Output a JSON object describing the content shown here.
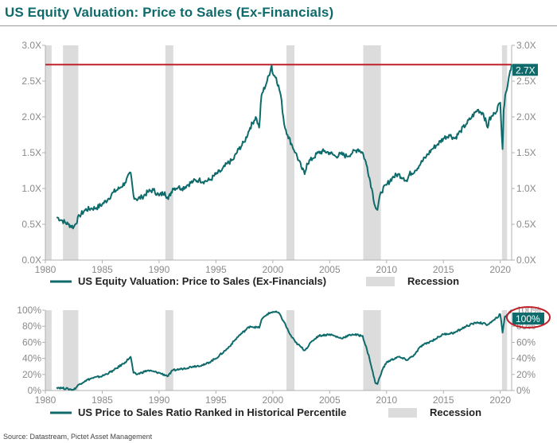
{
  "title": "US Equity Valuation: Price to Sales (Ex-Financials)",
  "source": "Source: Datastream, Pictet Asset Management",
  "colors": {
    "line": "#0f6b6b",
    "recession": "#dcdcdc",
    "reference": "#c0202a",
    "ticks": "#8a8a8a"
  },
  "recessions": [
    [
      1980.0,
      1980.55
    ],
    [
      1981.55,
      1982.9
    ],
    [
      1990.55,
      1991.25
    ],
    [
      2001.2,
      2001.9
    ],
    [
      2007.95,
      2009.5
    ],
    [
      2020.15,
      2020.6
    ]
  ],
  "chart_data": [
    {
      "type": "line",
      "title": "US Equity Valuation: Price to Sales (Ex-Financials)",
      "xlim": [
        1980,
        2021
      ],
      "ylim": [
        0,
        3.0
      ],
      "x_ticks": [
        "1980",
        "1985",
        "1990",
        "1995",
        "2000",
        "2005",
        "2010",
        "2015",
        "2020"
      ],
      "y_ticks_left": [
        "0.0X",
        "0.5X",
        "1.0X",
        "1.5X",
        "2.0X",
        "2.5X",
        "3.0X"
      ],
      "y_ticks_right": [
        "0.0X",
        "0.5X",
        "1.0X",
        "1.5X",
        "2.0X",
        "2.5X",
        "3.0X"
      ],
      "reference_line": {
        "value": 2.73,
        "label": "2.7X"
      },
      "legend": {
        "series_label": "US Equity Valuation: Price to Sales (Ex-Financials)",
        "recession_label": "Recession"
      },
      "series": [
        {
          "name": "US Equity Valuation: Price to Sales (Ex-Financials)",
          "x": [
            1981.0,
            1981.5,
            1982.0,
            1982.5,
            1983.0,
            1983.5,
            1984.0,
            1984.5,
            1985.0,
            1985.5,
            1986.0,
            1986.5,
            1987.0,
            1987.5,
            1987.75,
            1988.0,
            1988.5,
            1989.0,
            1989.5,
            1990.0,
            1990.5,
            1990.8,
            1991.2,
            1991.7,
            1992.0,
            1992.5,
            1993.0,
            1993.5,
            1994.0,
            1994.5,
            1995.0,
            1995.5,
            1996.0,
            1996.5,
            1997.0,
            1997.5,
            1998.0,
            1998.5,
            1998.8,
            1999.0,
            1999.5,
            1999.9,
            2000.0,
            2000.3,
            2000.7,
            2001.0,
            2001.3,
            2001.7,
            2002.0,
            2002.5,
            2002.8,
            2003.0,
            2003.5,
            2004.0,
            2004.5,
            2005.0,
            2005.5,
            2006.0,
            2006.5,
            2007.0,
            2007.5,
            2007.9,
            2008.3,
            2008.7,
            2009.0,
            2009.2,
            2009.5,
            2010.0,
            2010.5,
            2011.0,
            2011.5,
            2011.8,
            2012.0,
            2012.5,
            2013.0,
            2013.5,
            2014.0,
            2014.5,
            2015.0,
            2015.5,
            2016.0,
            2016.5,
            2017.0,
            2017.5,
            2018.0,
            2018.5,
            2018.9,
            2019.0,
            2019.5,
            2020.0,
            2020.2,
            2020.3,
            2020.5,
            2020.75,
            2021.0
          ],
          "values": [
            0.6,
            0.55,
            0.5,
            0.46,
            0.62,
            0.7,
            0.72,
            0.73,
            0.78,
            0.85,
            0.95,
            1.0,
            1.08,
            1.22,
            0.9,
            0.85,
            0.88,
            0.95,
            0.98,
            0.9,
            0.95,
            0.85,
            1.0,
            1.02,
            1.0,
            1.05,
            1.1,
            1.12,
            1.1,
            1.12,
            1.2,
            1.25,
            1.35,
            1.4,
            1.55,
            1.65,
            1.85,
            2.0,
            1.85,
            2.3,
            2.5,
            2.72,
            2.6,
            2.55,
            2.3,
            1.9,
            1.75,
            1.6,
            1.5,
            1.3,
            1.2,
            1.35,
            1.42,
            1.5,
            1.52,
            1.5,
            1.45,
            1.48,
            1.45,
            1.5,
            1.55,
            1.5,
            1.3,
            1.0,
            0.75,
            0.7,
            0.95,
            1.05,
            1.15,
            1.2,
            1.15,
            1.1,
            1.2,
            1.25,
            1.35,
            1.45,
            1.55,
            1.62,
            1.7,
            1.75,
            1.7,
            1.8,
            1.9,
            2.0,
            2.1,
            2.05,
            1.85,
            1.95,
            2.05,
            2.2,
            1.55,
            2.1,
            2.35,
            2.55,
            2.73
          ]
        }
      ]
    },
    {
      "type": "line",
      "title": "US Price to Sales Ratio Ranked in Historical Percentile",
      "xlim": [
        1980,
        2021
      ],
      "ylim": [
        0,
        100
      ],
      "x_ticks": [
        "1980",
        "1985",
        "1990",
        "1995",
        "2000",
        "2005",
        "2010",
        "2015",
        "2020"
      ],
      "y_ticks_left": [
        "0%",
        "20%",
        "40%",
        "60%",
        "80%",
        "100%"
      ],
      "y_ticks_right": [
        "0%",
        "20%",
        "40%",
        "60%",
        "80%",
        "100%"
      ],
      "current_label": "100%",
      "legend": {
        "series_label": "US Price to Sales Ratio Ranked in Historical Percentile",
        "recession_label": "Recession"
      },
      "series": [
        {
          "name": "US Price to Sales Ratio Ranked in Historical Percentile",
          "x": [
            1981.0,
            1981.5,
            1982.0,
            1982.5,
            1983.0,
            1983.5,
            1984.0,
            1985.0,
            1986.0,
            1987.0,
            1987.5,
            1987.75,
            1988.0,
            1989.0,
            1990.0,
            1990.8,
            1991.2,
            1992.0,
            1993.0,
            1994.0,
            1995.0,
            1996.0,
            1997.0,
            1998.0,
            1998.8,
            1999.0,
            1999.5,
            2000.0,
            2000.5,
            2001.0,
            2001.5,
            2002.0,
            2002.8,
            2003.5,
            2004.0,
            2005.0,
            2006.0,
            2007.0,
            2007.9,
            2008.5,
            2009.0,
            2009.2,
            2009.6,
            2010.0,
            2011.0,
            2011.8,
            2012.5,
            2013.0,
            2014.0,
            2015.0,
            2016.0,
            2017.0,
            2018.0,
            2018.9,
            2019.5,
            2020.0,
            2020.2,
            2020.4,
            2020.75,
            2021.0
          ],
          "values": [
            4,
            3,
            2,
            1,
            8,
            12,
            15,
            18,
            25,
            35,
            42,
            22,
            20,
            25,
            22,
            18,
            25,
            27,
            30,
            32,
            40,
            52,
            68,
            80,
            78,
            88,
            95,
            98,
            97,
            85,
            70,
            60,
            50,
            62,
            68,
            70,
            65,
            70,
            68,
            40,
            10,
            8,
            25,
            35,
            42,
            38,
            45,
            55,
            62,
            70,
            72,
            80,
            85,
            82,
            88,
            95,
            72,
            92,
            96,
            100
          ]
        }
      ]
    }
  ]
}
